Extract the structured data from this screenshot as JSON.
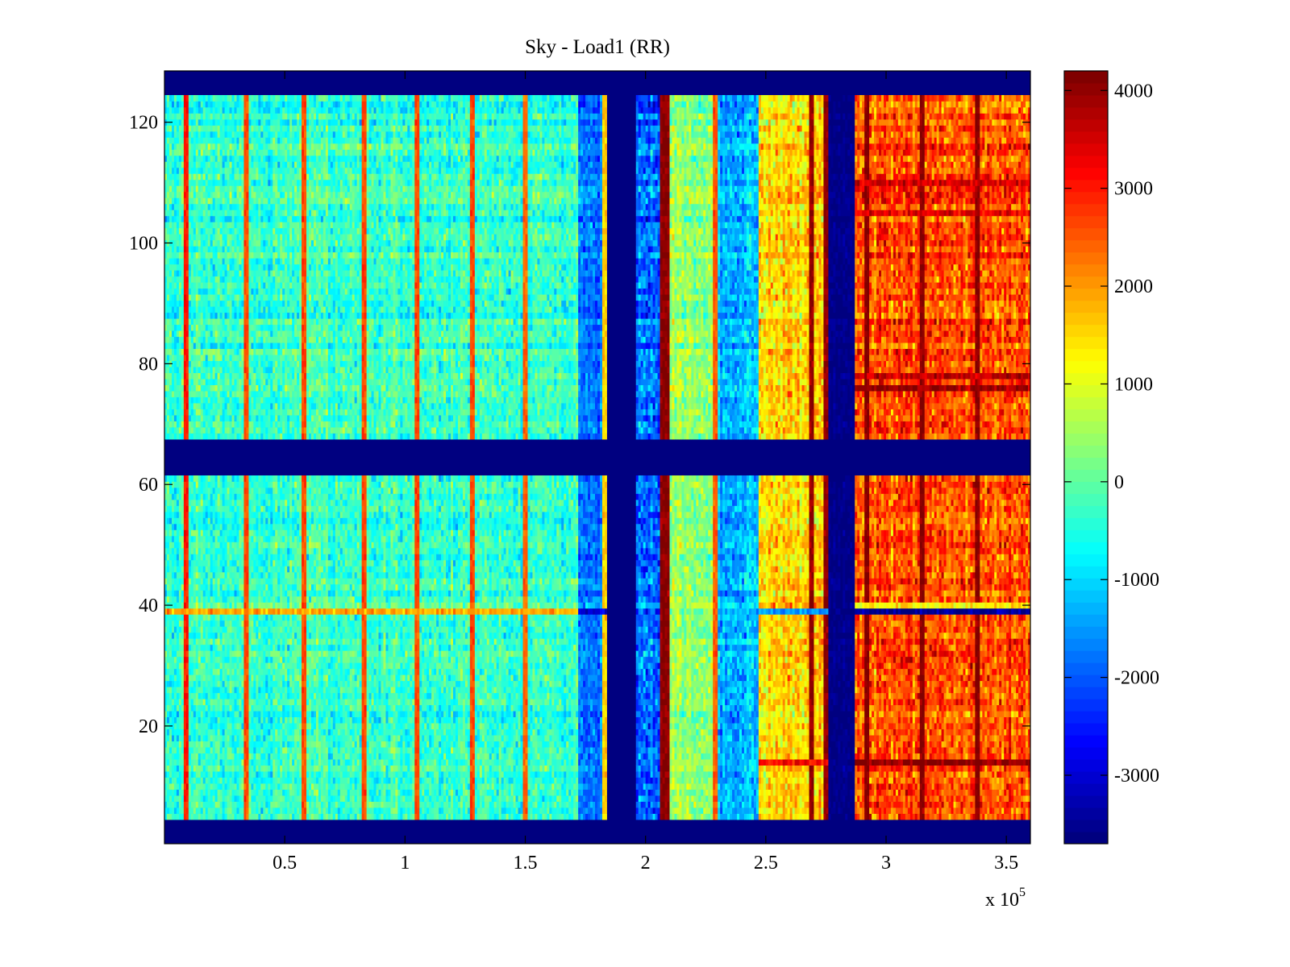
{
  "chart_data": {
    "type": "heatmap",
    "title": "Sky - Load1 (RR)",
    "xlabel": "",
    "ylabel": "",
    "x_multiplier_label": "x 10",
    "x_multiplier_exponent": "5",
    "xlim": [
      0,
      360000
    ],
    "ylim": [
      0.5,
      128.5
    ],
    "x_ticks": [
      {
        "value": 50000,
        "label": "0.5"
      },
      {
        "value": 100000,
        "label": "1"
      },
      {
        "value": 150000,
        "label": "1.5"
      },
      {
        "value": 200000,
        "label": "2"
      },
      {
        "value": 250000,
        "label": "2.5"
      },
      {
        "value": 300000,
        "label": "3"
      },
      {
        "value": 350000,
        "label": "3.5"
      }
    ],
    "y_ticks": [
      {
        "value": 20,
        "label": "20"
      },
      {
        "value": 40,
        "label": "40"
      },
      {
        "value": 60,
        "label": "60"
      },
      {
        "value": 80,
        "label": "80"
      },
      {
        "value": 100,
        "label": "100"
      },
      {
        "value": 120,
        "label": "120"
      }
    ],
    "colormap": "jet",
    "clim": [
      -3700,
      4200
    ],
    "colorbar": {
      "location": "right",
      "ticks": [
        {
          "value": 4000,
          "label": "4000"
        },
        {
          "value": 3000,
          "label": "3000"
        },
        {
          "value": 2000,
          "label": "2000"
        },
        {
          "value": 1000,
          "label": "1000"
        },
        {
          "value": 0,
          "label": "0"
        },
        {
          "value": -1000,
          "label": "-1000"
        },
        {
          "value": -2000,
          "label": "-2000"
        },
        {
          "value": -3000,
          "label": "-3000"
        }
      ]
    },
    "blank_value": -3700,
    "blank_rows": [
      [
        1,
        4
      ],
      [
        62,
        67
      ],
      [
        125,
        128
      ]
    ],
    "column_regions": [
      {
        "x_start": 0,
        "x_end": 172000,
        "mean": -300,
        "spread": 700
      },
      {
        "x_start": 172000,
        "x_end": 184000,
        "mean": -1700,
        "spread": 600
      },
      {
        "x_start": 184000,
        "x_end": 196000,
        "mean": -3700,
        "spread": 0
      },
      {
        "x_start": 196000,
        "x_end": 206000,
        "mean": -1900,
        "spread": 900
      },
      {
        "x_start": 206000,
        "x_end": 210000,
        "mean": 4000,
        "spread": 300
      },
      {
        "x_start": 210000,
        "x_end": 230000,
        "mean": 300,
        "spread": 700
      },
      {
        "x_start": 230000,
        "x_end": 247000,
        "mean": -1300,
        "spread": 700
      },
      {
        "x_start": 247000,
        "x_end": 276000,
        "mean": 1500,
        "spread": 800
      },
      {
        "x_start": 276000,
        "x_end": 287000,
        "mean": -3600,
        "spread": 200
      },
      {
        "x_start": 287000,
        "x_end": 360000,
        "mean": 2600,
        "spread": 900
      }
    ],
    "vertical_stripes": [
      {
        "x": 9000,
        "value": 3000
      },
      {
        "x": 34000,
        "value": 2600
      },
      {
        "x": 58000,
        "value": 2600
      },
      {
        "x": 83000,
        "value": 2600
      },
      {
        "x": 105000,
        "value": 2600
      },
      {
        "x": 128000,
        "value": 2600
      },
      {
        "x": 150000,
        "value": 2400
      },
      {
        "x": 183000,
        "value": 1600
      },
      {
        "x": 229000,
        "value": 2500
      },
      {
        "x": 269000,
        "value": 4000
      },
      {
        "x": 275000,
        "value": 4000
      },
      {
        "x": 292000,
        "value": 4100
      },
      {
        "x": 315000,
        "value": 4100
      },
      {
        "x": 338000,
        "value": 4100
      }
    ],
    "horizontal_features": [
      {
        "row": 39,
        "x_start": 0,
        "x_end": 172000,
        "value": 1900
      },
      {
        "row": 39,
        "x_start": 172000,
        "x_end": 184000,
        "value": -3000
      },
      {
        "row": 39,
        "x_start": 247000,
        "x_end": 276000,
        "value": -1500
      },
      {
        "row": 39,
        "x_start": 287000,
        "x_end": 360000,
        "value": -3500
      },
      {
        "row": 40,
        "x_start": 287000,
        "x_end": 360000,
        "value": 1300
      },
      {
        "row": 14,
        "x_start": 287000,
        "x_end": 360000,
        "value": 4100
      },
      {
        "row": 14,
        "x_start": 247000,
        "x_end": 276000,
        "value": 3200
      },
      {
        "row": 76,
        "x_start": 287000,
        "x_end": 360000,
        "value": 3900
      },
      {
        "row": 78,
        "x_start": 287000,
        "x_end": 360000,
        "value": 3700
      },
      {
        "row": 110,
        "x_start": 287000,
        "x_end": 360000,
        "value": 3500
      },
      {
        "row": 105,
        "x_start": 287000,
        "x_end": 360000,
        "value": 3400
      }
    ]
  }
}
